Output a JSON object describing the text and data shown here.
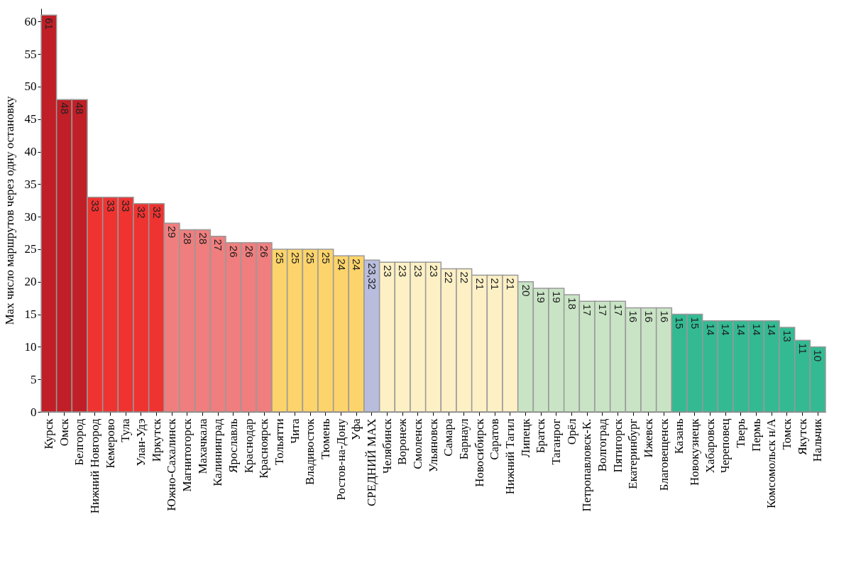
{
  "chart_data": {
    "type": "bar",
    "ylabel": "Max число маршрутов через одну остановку",
    "categories": [
      "Курск",
      "Омск",
      "Белгород",
      "Нижний Новгород",
      "Кемерово",
      "Тула",
      "Улан-Удэ",
      "Иркутск",
      "Южно-Сахалинск",
      "Магнитогорск",
      "Махачкала",
      "Калининград",
      "Ярославль",
      "Краснодар",
      "Красноярск",
      "Тольятти",
      "Чита",
      "Владивосток",
      "Тюмень",
      "Ростов-на-Дону",
      "Уфа",
      "СРЕДНИЙ MAX",
      "Челябинск",
      "Воронеж",
      "Смоленск",
      "Ульяновск",
      "Самара",
      "Барнаул",
      "Новосибирск",
      "Саратов",
      "Нижний Тагил",
      "Липецк",
      "Братск",
      "Таганрог",
      "Орёл",
      "Петропавловск-К.",
      "Волгоград",
      "Пятигорск",
      "Екатеринбург",
      "Ижевск",
      "Благовещенск",
      "Казань",
      "Новокузнецк",
      "Хабаровск",
      "Череповец",
      "Тверь",
      "Пермь",
      "Комсомольск н/А",
      "Томск",
      "Якутск",
      "Нальчик"
    ],
    "values": [
      61,
      48,
      48,
      33,
      33,
      33,
      32,
      32,
      29,
      28,
      28,
      27,
      26,
      26,
      26,
      25,
      25,
      25,
      25,
      24,
      24,
      23.32,
      23,
      23,
      23,
      23,
      22,
      22,
      21,
      21,
      21,
      20,
      19,
      19,
      18,
      17,
      17,
      17,
      16,
      16,
      16,
      15,
      15,
      14,
      14,
      14,
      14,
      14,
      13,
      11,
      10
    ],
    "value_labels": [
      "61",
      "48",
      "48",
      "33",
      "33",
      "33",
      "32",
      "32",
      "29",
      "28",
      "28",
      "27",
      "26",
      "26",
      "26",
      "25",
      "25",
      "25",
      "25",
      "24",
      "24",
      "23,32",
      "23",
      "23",
      "23",
      "23",
      "22",
      "22",
      "21",
      "21",
      "21",
      "20",
      "19",
      "19",
      "18",
      "17",
      "17",
      "17",
      "16",
      "16",
      "16",
      "15",
      "15",
      "14",
      "14",
      "14",
      "14",
      "14",
      "13",
      "11",
      "10"
    ],
    "colors": [
      "#c01f27",
      "#c01f27",
      "#c01f27",
      "#ee3331",
      "#ee3331",
      "#ee3331",
      "#ee3331",
      "#ee3331",
      "#f07e7e",
      "#f07e7e",
      "#f07e7e",
      "#f07e7e",
      "#f07e7e",
      "#f07e7e",
      "#f07e7e",
      "#fcd46b",
      "#fcd46b",
      "#fcd46b",
      "#fcd46b",
      "#fcd46b",
      "#fcd46b",
      "#b9bddd",
      "#fdf0c5",
      "#fdf0c5",
      "#fdf0c5",
      "#fdf0c5",
      "#fdf0c5",
      "#fdf0c5",
      "#fdf0c5",
      "#fdf0c5",
      "#fdf0c5",
      "#c9e4c5",
      "#c9e4c5",
      "#c9e4c5",
      "#c9e4c5",
      "#c9e4c5",
      "#c9e4c5",
      "#c9e4c5",
      "#c9e4c5",
      "#c9e4c5",
      "#c9e4c5",
      "#33ba93",
      "#33ba93",
      "#33ba93",
      "#33ba93",
      "#33ba93",
      "#33ba93",
      "#33ba93",
      "#33ba93",
      "#33ba93",
      "#33ba93"
    ],
    "ylim": [
      0,
      62
    ],
    "yticks": [
      0,
      5,
      10,
      15,
      20,
      25,
      30,
      35,
      40,
      45,
      50,
      55,
      60
    ]
  }
}
